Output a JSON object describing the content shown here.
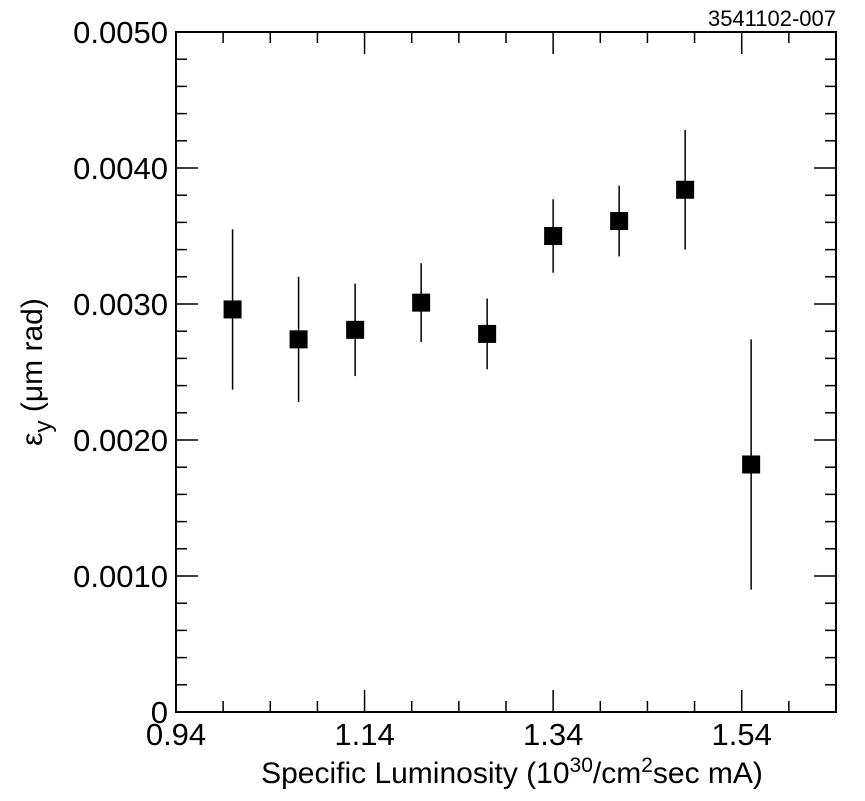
{
  "figure_id": "3541102-007",
  "chart_data": {
    "type": "scatter",
    "xlabel": {
      "prefix": "Specific Luminosity (10",
      "exp1": "30",
      "middle": "/cm",
      "exp2": "2",
      "suffix": "sec mA)"
    },
    "ylabel": {
      "symbol": "ε",
      "subscript": "y",
      "units": " (μm rad)"
    },
    "xlim": [
      0.94,
      1.64
    ],
    "ylim": [
      0,
      0.005
    ],
    "x_ticks": [
      0.94,
      1.14,
      1.34,
      1.54
    ],
    "x_tick_labels": [
      "0.94",
      "1.14",
      "1.34",
      "1.54"
    ],
    "x_minor_step": 0.05,
    "y_ticks": [
      0,
      0.001,
      0.002,
      0.003,
      0.004,
      0.005
    ],
    "y_tick_labels": [
      "0",
      "0.0010",
      "0.0020",
      "0.0030",
      "0.0040",
      "0.0050"
    ],
    "y_minor_step": 0.0002,
    "grid": false,
    "series": [
      {
        "marker": "filled-square",
        "color": "#000000",
        "points": [
          {
            "x": 1.0,
            "y": 0.00296,
            "err": 0.00059
          },
          {
            "x": 1.07,
            "y": 0.00274,
            "err": 0.00046
          },
          {
            "x": 1.13,
            "y": 0.00281,
            "err": 0.00034
          },
          {
            "x": 1.2,
            "y": 0.00301,
            "err": 0.00029
          },
          {
            "x": 1.27,
            "y": 0.00278,
            "err": 0.00026
          },
          {
            "x": 1.34,
            "y": 0.0035,
            "err": 0.00027
          },
          {
            "x": 1.41,
            "y": 0.00361,
            "err": 0.00026
          },
          {
            "x": 1.48,
            "y": 0.00384,
            "err": 0.00044
          },
          {
            "x": 1.55,
            "y": 0.00182,
            "err": 0.00092
          }
        ]
      }
    ]
  }
}
